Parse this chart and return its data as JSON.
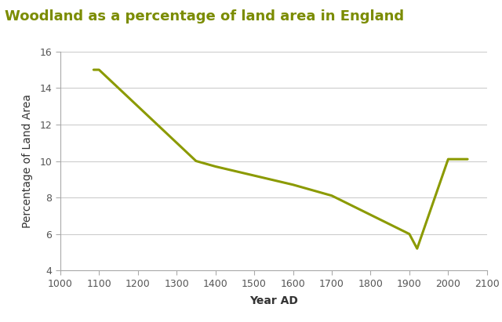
{
  "title": "Woodland as a percentage of land area in England",
  "xlabel": "Year AD",
  "ylabel": "Percentage of Land Area",
  "title_color": "#7b8c00",
  "line_color": "#8b9a00",
  "background_color": "#ffffff",
  "x": [
    1086,
    1100,
    1200,
    1350,
    1400,
    1500,
    1600,
    1650,
    1700,
    1900,
    1920,
    2000,
    2050
  ],
  "y": [
    15.0,
    15.0,
    13.0,
    10.0,
    9.7,
    9.2,
    8.7,
    8.4,
    8.1,
    6.0,
    5.2,
    10.1,
    10.1
  ],
  "xlim": [
    1000,
    2100
  ],
  "ylim": [
    4,
    16
  ],
  "xticks": [
    1000,
    1100,
    1200,
    1300,
    1400,
    1500,
    1600,
    1700,
    1800,
    1900,
    2000,
    2100
  ],
  "yticks": [
    4,
    6,
    8,
    10,
    12,
    14,
    16
  ],
  "grid_color": "#cccccc",
  "line_width": 2.2,
  "title_fontsize": 13,
  "label_fontsize": 10,
  "tick_fontsize": 9,
  "spine_color": "#aaaaaa",
  "tick_color": "#555555"
}
